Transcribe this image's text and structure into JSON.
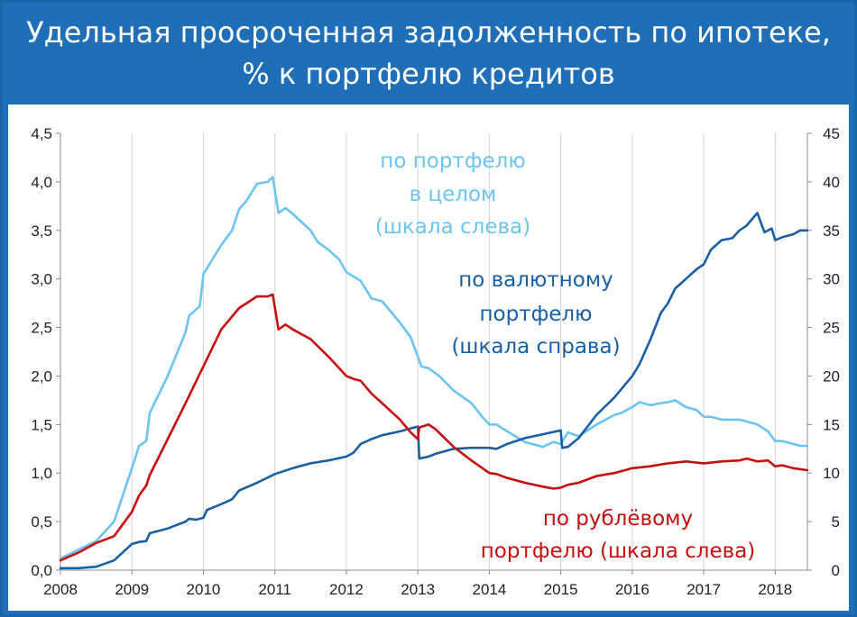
{
  "header": {
    "title_line1": "Удельная просроченная задолженность по ипотеке,",
    "title_line2": "% к портфелю кредитов"
  },
  "chart_data": {
    "type": "line",
    "title": "Удельная просроченная задолженность по ипотеке, % к портфелю кредитов",
    "xlim": [
      2008,
      2018.45
    ],
    "x_ticks": [
      "2008",
      "2009",
      "2010",
      "2011",
      "2012",
      "2013",
      "2014",
      "2015",
      "2016",
      "2017",
      "2018"
    ],
    "y_left": {
      "range": [
        0,
        4.5
      ],
      "ticks": [
        "0,0",
        "0,5",
        "1,0",
        "1,5",
        "2,0",
        "2,5",
        "3,0",
        "3,5",
        "4,0",
        "4,5"
      ]
    },
    "y_right": {
      "range": [
        0,
        45
      ],
      "ticks": [
        "0",
        "5",
        "10",
        "15",
        "20",
        "25",
        "30",
        "35",
        "40",
        "45"
      ]
    },
    "grid": "vertical",
    "series": [
      {
        "name": "по портфелю в целом (шкала слева)",
        "color": "#6cc4f0",
        "axis": "left",
        "points": [
          [
            2008,
            0.12
          ],
          [
            2008.5,
            0.3
          ],
          [
            2008.75,
            0.5
          ],
          [
            2009,
            1.05
          ],
          [
            2009.1,
            1.28
          ],
          [
            2009.2,
            1.33
          ],
          [
            2009.25,
            1.62
          ],
          [
            2009.5,
            2.0
          ],
          [
            2009.75,
            2.45
          ],
          [
            2009.8,
            2.62
          ],
          [
            2009.95,
            2.72
          ],
          [
            2010,
            3.05
          ],
          [
            2010.25,
            3.35
          ],
          [
            2010.4,
            3.5
          ],
          [
            2010.5,
            3.72
          ],
          [
            2010.6,
            3.8
          ],
          [
            2010.75,
            3.98
          ],
          [
            2010.9,
            4.0
          ],
          [
            2010.97,
            4.05
          ],
          [
            2011.05,
            3.68
          ],
          [
            2011.15,
            3.73
          ],
          [
            2011.25,
            3.67
          ],
          [
            2011.5,
            3.5
          ],
          [
            2011.6,
            3.38
          ],
          [
            2011.75,
            3.3
          ],
          [
            2011.9,
            3.2
          ],
          [
            2012,
            3.07
          ],
          [
            2012.2,
            2.98
          ],
          [
            2012.35,
            2.8
          ],
          [
            2012.5,
            2.77
          ],
          [
            2012.75,
            2.55
          ],
          [
            2012.9,
            2.4
          ],
          [
            2013,
            2.2
          ],
          [
            2013.05,
            2.1
          ],
          [
            2013.15,
            2.08
          ],
          [
            2013.3,
            2.0
          ],
          [
            2013.5,
            1.85
          ],
          [
            2013.75,
            1.72
          ],
          [
            2013.9,
            1.58
          ],
          [
            2014,
            1.5
          ],
          [
            2014.1,
            1.5
          ],
          [
            2014.25,
            1.43
          ],
          [
            2014.5,
            1.32
          ],
          [
            2014.75,
            1.27
          ],
          [
            2014.9,
            1.32
          ],
          [
            2015,
            1.3
          ],
          [
            2015.1,
            1.42
          ],
          [
            2015.25,
            1.38
          ],
          [
            2015.5,
            1.5
          ],
          [
            2015.75,
            1.6
          ],
          [
            2015.85,
            1.62
          ],
          [
            2016,
            1.68
          ],
          [
            2016.1,
            1.73
          ],
          [
            2016.25,
            1.7
          ],
          [
            2016.4,
            1.72
          ],
          [
            2016.5,
            1.73
          ],
          [
            2016.6,
            1.75
          ],
          [
            2016.75,
            1.68
          ],
          [
            2016.9,
            1.65
          ],
          [
            2017,
            1.58
          ],
          [
            2017.1,
            1.58
          ],
          [
            2017.25,
            1.55
          ],
          [
            2017.5,
            1.55
          ],
          [
            2017.75,
            1.5
          ],
          [
            2017.9,
            1.43
          ],
          [
            2018,
            1.33
          ],
          [
            2018.1,
            1.33
          ],
          [
            2018.25,
            1.3
          ],
          [
            2018.35,
            1.28
          ],
          [
            2018.45,
            1.28
          ]
        ]
      },
      {
        "name": "по валютному портфелю (шкала справа)",
        "color": "#1a5fa3",
        "axis": "right",
        "points": [
          [
            2008,
            0.2
          ],
          [
            2008.25,
            0.2
          ],
          [
            2008.5,
            0.35
          ],
          [
            2008.75,
            1.0
          ],
          [
            2009,
            2.7
          ],
          [
            2009.1,
            2.9
          ],
          [
            2009.2,
            3.0
          ],
          [
            2009.25,
            3.8
          ],
          [
            2009.5,
            4.3
          ],
          [
            2009.75,
            5.0
          ],
          [
            2009.8,
            5.3
          ],
          [
            2009.9,
            5.2
          ],
          [
            2010,
            5.4
          ],
          [
            2010.05,
            6.2
          ],
          [
            2010.25,
            6.8
          ],
          [
            2010.4,
            7.3
          ],
          [
            2010.5,
            8.2
          ],
          [
            2010.75,
            9.0
          ],
          [
            2011,
            9.9
          ],
          [
            2011.25,
            10.5
          ],
          [
            2011.5,
            11.0
          ],
          [
            2011.75,
            11.3
          ],
          [
            2012,
            11.7
          ],
          [
            2012.1,
            12.1
          ],
          [
            2012.2,
            13.0
          ],
          [
            2012.35,
            13.5
          ],
          [
            2012.5,
            13.9
          ],
          [
            2012.75,
            14.3
          ],
          [
            2012.9,
            14.6
          ],
          [
            2013,
            14.8
          ],
          [
            2013.02,
            11.5
          ],
          [
            2013.15,
            11.7
          ],
          [
            2013.25,
            12.0
          ],
          [
            2013.5,
            12.5
          ],
          [
            2013.75,
            12.6
          ],
          [
            2014,
            12.6
          ],
          [
            2014.1,
            12.5
          ],
          [
            2014.25,
            13.0
          ],
          [
            2014.5,
            13.6
          ],
          [
            2014.75,
            14.0
          ],
          [
            2015,
            14.4
          ],
          [
            2015.02,
            12.6
          ],
          [
            2015.1,
            12.7
          ],
          [
            2015.25,
            13.6
          ],
          [
            2015.5,
            16.0
          ],
          [
            2015.75,
            17.8
          ],
          [
            2016,
            20.0
          ],
          [
            2016.1,
            21.2
          ],
          [
            2016.25,
            23.7
          ],
          [
            2016.4,
            26.5
          ],
          [
            2016.5,
            27.5
          ],
          [
            2016.6,
            29.0
          ],
          [
            2016.75,
            30.0
          ],
          [
            2016.9,
            31.0
          ],
          [
            2017,
            31.5
          ],
          [
            2017.1,
            33.0
          ],
          [
            2017.25,
            34.0
          ],
          [
            2017.4,
            34.2
          ],
          [
            2017.5,
            35.0
          ],
          [
            2017.6,
            35.5
          ],
          [
            2017.75,
            36.8
          ],
          [
            2017.85,
            34.8
          ],
          [
            2017.95,
            35.2
          ],
          [
            2018,
            34.0
          ],
          [
            2018.1,
            34.3
          ],
          [
            2018.25,
            34.6
          ],
          [
            2018.35,
            35.0
          ],
          [
            2018.45,
            35.0
          ]
        ]
      },
      {
        "name": "по рублёвому портфелю (шкала слева)",
        "color": "#c80f0f",
        "axis": "left",
        "points": [
          [
            2008,
            0.1
          ],
          [
            2008.25,
            0.18
          ],
          [
            2008.5,
            0.28
          ],
          [
            2008.75,
            0.35
          ],
          [
            2009,
            0.6
          ],
          [
            2009.1,
            0.77
          ],
          [
            2009.2,
            0.87
          ],
          [
            2009.25,
            0.98
          ],
          [
            2009.5,
            1.35
          ],
          [
            2009.75,
            1.72
          ],
          [
            2010,
            2.1
          ],
          [
            2010.25,
            2.48
          ],
          [
            2010.5,
            2.7
          ],
          [
            2010.75,
            2.82
          ],
          [
            2010.9,
            2.82
          ],
          [
            2010.97,
            2.84
          ],
          [
            2011.05,
            2.48
          ],
          [
            2011.15,
            2.53
          ],
          [
            2011.25,
            2.48
          ],
          [
            2011.5,
            2.38
          ],
          [
            2011.75,
            2.2
          ],
          [
            2012,
            2.0
          ],
          [
            2012.1,
            1.97
          ],
          [
            2012.2,
            1.95
          ],
          [
            2012.35,
            1.82
          ],
          [
            2012.5,
            1.72
          ],
          [
            2012.75,
            1.55
          ],
          [
            2012.9,
            1.42
          ],
          [
            2013,
            1.35
          ],
          [
            2013.02,
            1.47
          ],
          [
            2013.15,
            1.5
          ],
          [
            2013.25,
            1.45
          ],
          [
            2013.5,
            1.27
          ],
          [
            2013.75,
            1.13
          ],
          [
            2014,
            1.0
          ],
          [
            2014.1,
            0.99
          ],
          [
            2014.25,
            0.95
          ],
          [
            2014.5,
            0.9
          ],
          [
            2014.75,
            0.86
          ],
          [
            2014.9,
            0.84
          ],
          [
            2015,
            0.85
          ],
          [
            2015.1,
            0.88
          ],
          [
            2015.25,
            0.9
          ],
          [
            2015.5,
            0.97
          ],
          [
            2015.75,
            1.0
          ],
          [
            2016,
            1.05
          ],
          [
            2016.25,
            1.07
          ],
          [
            2016.5,
            1.1
          ],
          [
            2016.75,
            1.12
          ],
          [
            2017,
            1.1
          ],
          [
            2017.25,
            1.12
          ],
          [
            2017.5,
            1.13
          ],
          [
            2017.6,
            1.15
          ],
          [
            2017.75,
            1.12
          ],
          [
            2017.9,
            1.13
          ],
          [
            2018,
            1.07
          ],
          [
            2018.1,
            1.08
          ],
          [
            2018.25,
            1.05
          ],
          [
            2018.45,
            1.03
          ]
        ]
      }
    ],
    "annotations": [
      {
        "id": "total",
        "lines": [
          "по портфелю",
          "в целом",
          "(шкала слева)"
        ],
        "color": "#6cc4f0"
      },
      {
        "id": "fx",
        "lines": [
          "по валютному",
          "портфелю",
          "(шкала справа)"
        ],
        "color": "#1a5fa3"
      },
      {
        "id": "rub",
        "lines": [
          "по рублёвому",
          "портфелю (шкала слева)"
        ],
        "color": "#c80f0f"
      }
    ]
  }
}
